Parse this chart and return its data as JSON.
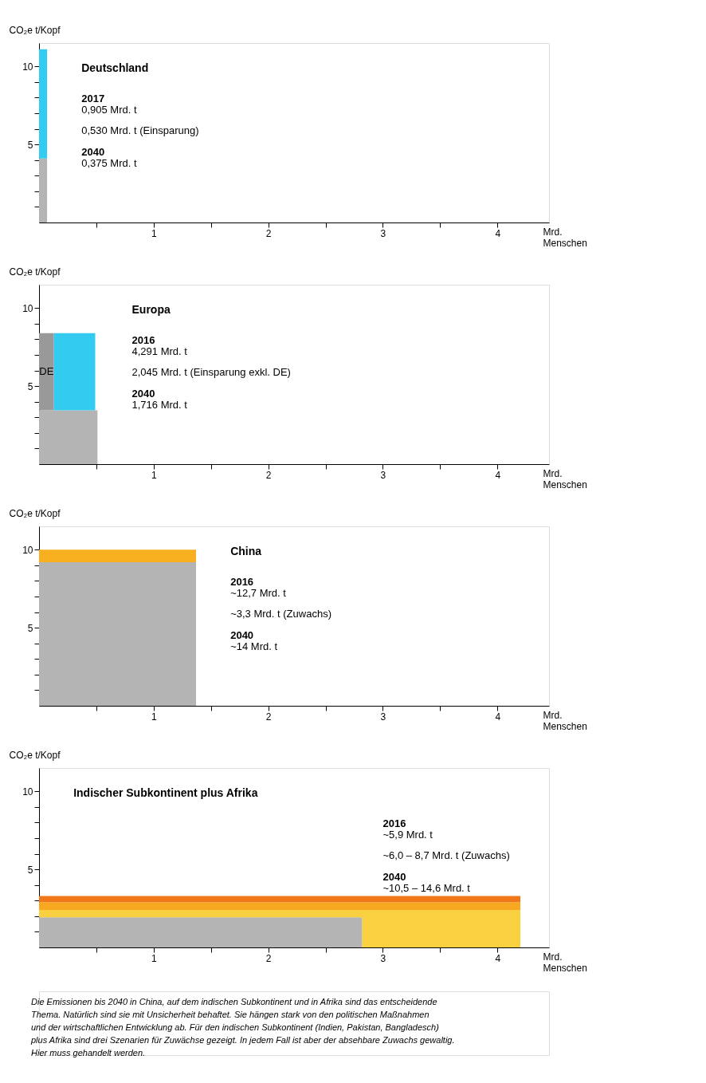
{
  "chart_data": [
    {
      "type": "area",
      "stacked": true,
      "title": "Deutschland",
      "xlabel": "Mrd. Menschen",
      "ylabel": "CO₂e t/Kopf",
      "xlim": [
        0,
        4.45
      ],
      "ylim": [
        0,
        11.5
      ],
      "xticks": [
        {
          "value": 0.5,
          "label": null
        },
        1,
        {
          "value": 1.5,
          "label": null
        },
        2,
        {
          "value": 2.5,
          "label": null
        },
        3,
        {
          "value": 3.5,
          "label": null
        },
        4
      ],
      "yticks": [
        {
          "value": 1,
          "label": null
        },
        {
          "value": 2,
          "label": null
        },
        {
          "value": 3,
          "label": null
        },
        {
          "value": 4,
          "label": null
        },
        5,
        {
          "value": 6,
          "label": null
        },
        {
          "value": 7,
          "label": null
        },
        {
          "value": 8,
          "label": null
        },
        {
          "value": 9,
          "label": null
        },
        10
      ],
      "grid": false,
      "x": [
        0,
        0.07
      ],
      "series": [
        {
          "color": "#b4b4b4",
          "values": [
            4.1,
            4.1
          ]
        },
        {
          "color": "#33ccf0",
          "values": [
            7.0,
            7.0
          ]
        }
      ],
      "annotations": [
        "2017",
        "0,905 Mrd. t",
        "0,530 Mrd. t (Einsparung)",
        "2040",
        "0,375 Mrd. t"
      ]
    },
    {
      "type": "area",
      "stacked": true,
      "title": "Europa",
      "xlabel": "Mrd. Menschen",
      "ylabel": "CO₂e t/Kopf",
      "xlim": [
        0,
        4.45
      ],
      "ylim": [
        0,
        11.5
      ],
      "xticks": [
        {
          "value": 0.5,
          "label": null
        },
        1,
        {
          "value": 1.5,
          "label": null
        },
        2,
        {
          "value": 2.5,
          "label": null
        },
        3,
        {
          "value": 3.5,
          "label": null
        },
        4
      ],
      "yticks": [
        {
          "value": 1,
          "label": null
        },
        {
          "value": 2,
          "label": null
        },
        {
          "value": 3,
          "label": null
        },
        {
          "value": 4,
          "label": null
        },
        5,
        {
          "value": 6,
          "label": null
        },
        {
          "value": 7,
          "label": null
        },
        {
          "value": 8,
          "label": null
        },
        {
          "value": 9,
          "label": null
        },
        10
      ],
      "grid": false,
      "x": [
        0,
        0.13,
        0.13,
        0.49,
        0.49,
        0.51
      ],
      "series": [
        {
          "color": "#b4b4b4",
          "values": [
            3.45,
            3.45,
            3.45,
            3.45,
            3.45,
            3.45
          ]
        },
        {
          "color": "#999999",
          "values": [
            4.95,
            4.95,
            null,
            null,
            null,
            null
          ]
        },
        {
          "color": "#33ccf0",
          "values": [
            null,
            null,
            4.95,
            4.95,
            null,
            null
          ]
        }
      ],
      "annotations": [
        "2016",
        "4,291 Mrd. t",
        "2,045 Mrd. t (Einsparung exkl. DE)",
        "2040",
        "1,716 Mrd. t",
        "DE"
      ]
    },
    {
      "type": "area",
      "stacked": true,
      "title": "China",
      "xlabel": "Mrd. Menschen",
      "ylabel": "CO₂e t/Kopf",
      "xlim": [
        0,
        4.45
      ],
      "ylim": [
        0,
        11.5
      ],
      "xticks": [
        {
          "value": 0.5,
          "label": null
        },
        1,
        {
          "value": 1.5,
          "label": null
        },
        2,
        {
          "value": 2.5,
          "label": null
        },
        3,
        {
          "value": 3.5,
          "label": null
        },
        4
      ],
      "yticks": [
        {
          "value": 1,
          "label": null
        },
        {
          "value": 2,
          "label": null
        },
        {
          "value": 3,
          "label": null
        },
        {
          "value": 4,
          "label": null
        },
        5,
        {
          "value": 6,
          "label": null
        },
        {
          "value": 7,
          "label": null
        },
        {
          "value": 8,
          "label": null
        },
        {
          "value": 9,
          "label": null
        },
        10
      ],
      "grid": false,
      "x": [
        0,
        1.37
      ],
      "series": [
        {
          "color": "#b4b4b4",
          "values": [
            9.2,
            9.2
          ]
        },
        {
          "color": "#f8b020",
          "values": [
            0.8,
            0.8
          ]
        }
      ],
      "annotations": [
        "2016",
        "~12,7 Mrd. t",
        "~3,3 Mrd. t (Zuwachs)",
        "2040",
        "~14 Mrd. t"
      ]
    },
    {
      "type": "area",
      "stacked": true,
      "title": "Indischer Subkontinent plus Afrika",
      "xlabel": "Mrd. Menschen",
      "ylabel": "CO₂e t/Kopf",
      "xlim": [
        0,
        4.45
      ],
      "ylim": [
        0,
        11.5
      ],
      "xticks": [
        {
          "value": 0.5,
          "label": null
        },
        1,
        {
          "value": 1.5,
          "label": null
        },
        2,
        {
          "value": 2.5,
          "label": null
        },
        3,
        {
          "value": 3.5,
          "label": null
        },
        4
      ],
      "yticks": [
        {
          "value": 1,
          "label": null
        },
        {
          "value": 2,
          "label": null
        },
        {
          "value": 3,
          "label": null
        },
        {
          "value": 4,
          "label": null
        },
        5,
        {
          "value": 6,
          "label": null
        },
        {
          "value": 7,
          "label": null
        },
        {
          "value": 8,
          "label": null
        },
        {
          "value": 9,
          "label": null
        },
        10
      ],
      "grid": false,
      "x": [
        0,
        2.82,
        2.82,
        4.2
      ],
      "series": [
        {
          "color": "#b4b4b4",
          "values": [
            1.93,
            1.93,
            0,
            0
          ]
        },
        {
          "color": "#f8d040",
          "values": [
            0.47,
            0.47,
            2.4,
            2.4
          ]
        },
        {
          "color": "#f8a820",
          "values": [
            0.5,
            0.5,
            0.5,
            0.5
          ]
        },
        {
          "color": "#f07818",
          "values": [
            0.4,
            0.4,
            0.4,
            0.4
          ]
        }
      ],
      "annotations": [
        "2016",
        "~5,9 Mrd. t",
        "~6,0 – 8,7 Mrd. t (Zuwachs)",
        "2040",
        "~10,5 – 14,6 Mrd. t"
      ]
    },
    {
      "type": "other",
      "annotations": [
        "Die Emissionen bis 2040 in China, auf dem indischen Subkontinent und in Afrika sind das entscheidende",
        "Thema. Natürlich sind sie mit Unsicherheit behaftet. Sie hängen stark von den politischen Maßnahmen",
        "und der wirtschaftlichen Entwicklung ab. Für den indischen Subkontinent (Indien, Pakistan, Bangladesch)",
        " plus Afrika sind drei Szenarien für Zuwächse gezeigt. In jedem Fall ist aber der absehbare Zuwachs gewaltig.",
        "Hier muss gehandelt werden."
      ]
    }
  ]
}
